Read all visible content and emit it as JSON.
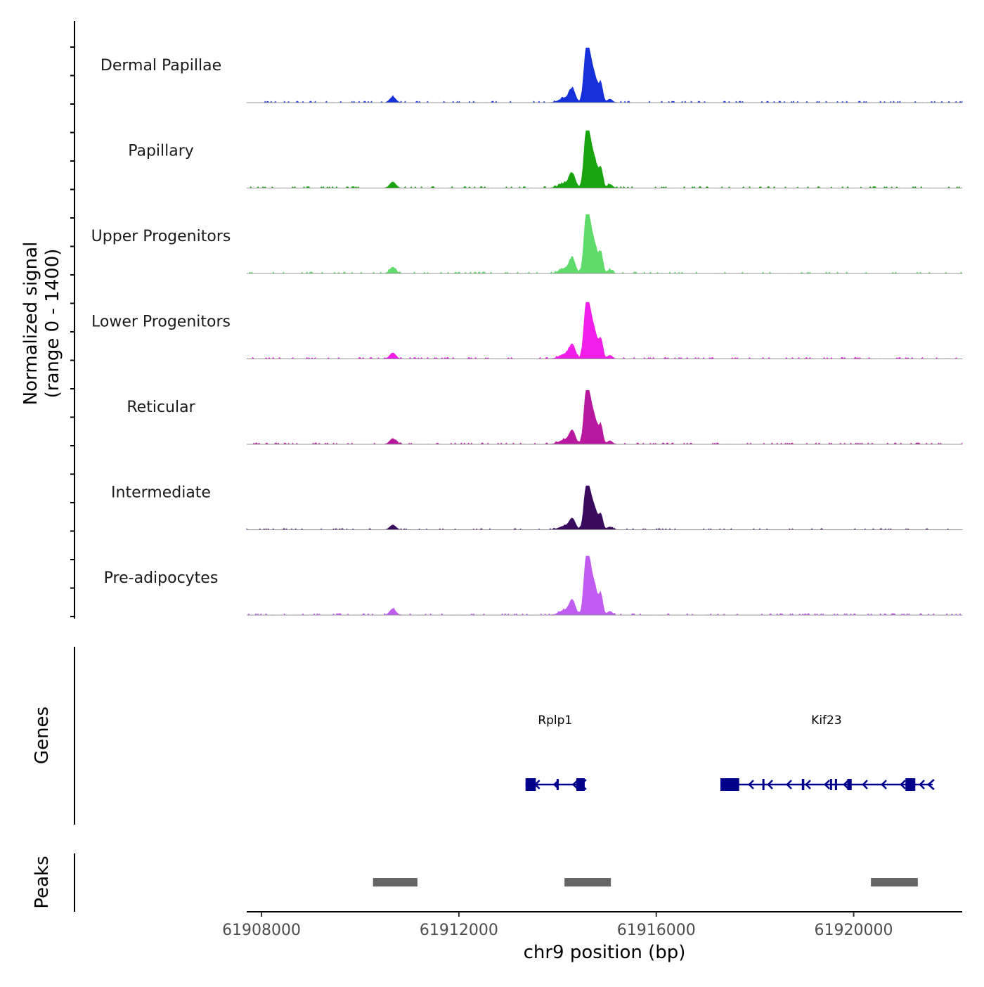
{
  "chart_data": {
    "type": "area",
    "title": "",
    "ylabel_line1": "Normalized signal",
    "ylabel_line2": "(range 0 - 1400)",
    "y_range": [
      0,
      1400
    ],
    "xlabel": "chr9 position (bp)",
    "x_range": [
      61907700,
      61922200
    ],
    "x_ticks": [
      61908000,
      61912000,
      61916000,
      61920000
    ],
    "x_tick_labels": [
      "61908000",
      "61912000",
      "61916000",
      "61920000"
    ],
    "tracks": [
      {
        "name": "Dermal Papillae",
        "color": "#1530D9",
        "peak_max": 1300
      },
      {
        "name": "Papillary",
        "color": "#19A30E",
        "peak_max": 1360
      },
      {
        "name": "Upper Progenitors",
        "color": "#5EDB6B",
        "peak_max": 1400
      },
      {
        "name": "Lower Progenitors",
        "color": "#F01EE8",
        "peak_max": 1340
      },
      {
        "name": "Reticular",
        "color": "#B8189F",
        "peak_max": 1280
      },
      {
        "name": "Intermediate",
        "color": "#3A0A5E",
        "peak_max": 1040
      },
      {
        "name": "Pre-adipocytes",
        "color": "#C05CF0",
        "peak_max": 1400
      }
    ],
    "signal_shape": [
      {
        "pos": 61910660,
        "width": 60,
        "rel": 0.1
      },
      {
        "pos": 61914150,
        "width": 110,
        "rel": 0.08
      },
      {
        "pos": 61914300,
        "width": 60,
        "rel": 0.22
      },
      {
        "pos": 61914580,
        "width": 50,
        "rel": 0.82
      },
      {
        "pos": 61914660,
        "width": 55,
        "rel": 0.55
      },
      {
        "pos": 61914760,
        "width": 60,
        "rel": 0.38
      },
      {
        "pos": 61914880,
        "width": 40,
        "rel": 0.3
      },
      {
        "pos": 61915060,
        "width": 50,
        "rel": 0.06
      }
    ],
    "genes_label": "Genes",
    "genes": [
      {
        "name": "Rplp1",
        "start": 61913350,
        "end": 61914550,
        "strand": "-",
        "exons": [
          [
            61913350,
            61913560
          ],
          [
            61913980,
            61914020
          ],
          [
            61914380,
            61914550
          ]
        ]
      },
      {
        "name": "Kif23",
        "start": 61917300,
        "end": 61921600,
        "strand": "-",
        "exons": [
          [
            61917300,
            61917680
          ],
          [
            61918150,
            61918190
          ],
          [
            61918950,
            61919000
          ],
          [
            61919520,
            61919560
          ],
          [
            61919620,
            61919650
          ],
          [
            61919870,
            61919960
          ],
          [
            61921050,
            61921250
          ]
        ]
      }
    ],
    "peaks_label": "Peaks",
    "peaks": [
      [
        61910260,
        61911160
      ],
      [
        61914140,
        61915080
      ],
      [
        61920350,
        61921300
      ]
    ],
    "colors": {
      "gene": "#00008B",
      "peak": "#666666",
      "axis": "#000000",
      "tick_text": "#4D4D4D",
      "baseline": "#999999"
    }
  }
}
